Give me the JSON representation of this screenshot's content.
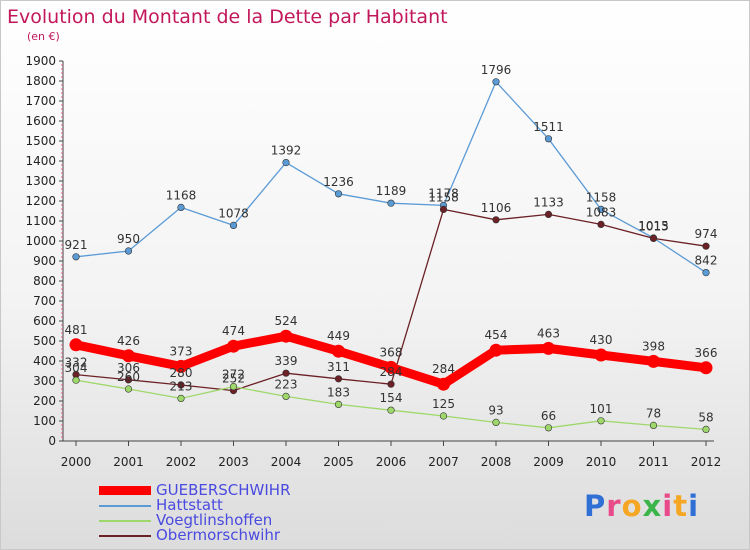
{
  "header": {
    "title": "Evolution du Montant de la Dette par Habitant",
    "subtitle": "(en €)"
  },
  "logo": {
    "text": "Proxiti",
    "colors": [
      "#2f6fd6",
      "#e94b8a",
      "#f5a623",
      "#3bb54a",
      "#e94b8a",
      "#f5a623",
      "#2f6fd6"
    ]
  },
  "chart_data": {
    "type": "line",
    "title": "Evolution du Montant de la Dette par Habitant",
    "subtitle": "(en €)",
    "xlabel": "",
    "ylabel": "",
    "x": [
      "2000",
      "2001",
      "2002",
      "2003",
      "2004",
      "2005",
      "2006",
      "2007",
      "2008",
      "2009",
      "2010",
      "2011",
      "2012"
    ],
    "ylim": [
      0,
      1900
    ],
    "yticks": [
      0,
      100,
      200,
      300,
      400,
      500,
      600,
      700,
      800,
      900,
      1000,
      1100,
      1200,
      1300,
      1400,
      1500,
      1600,
      1700,
      1800,
      1900
    ],
    "grid": false,
    "legend_position": "bottom-left",
    "series": [
      {
        "name": "Hattstatt",
        "color": "#5b9bd5",
        "values": [
          921,
          950,
          1168,
          1078,
          1392,
          1236,
          1189,
          1178,
          1796,
          1511,
          1158,
          1015,
          842
        ],
        "show_labels": true
      },
      {
        "name": "Obermorschwihr",
        "color": "#6b2125",
        "values": [
          332,
          306,
          280,
          252,
          339,
          311,
          284,
          1158,
          1106,
          1133,
          1083,
          1013,
          974
        ],
        "show_labels": true
      },
      {
        "name": "Voegtlinshoffen",
        "color": "#9fd86a",
        "values": [
          304,
          260,
          213,
          272,
          223,
          183,
          154,
          125,
          93,
          66,
          101,
          78,
          58
        ],
        "show_labels": true
      },
      {
        "name": "GUEBERSCHWIHR",
        "color": "#ff0000",
        "values": [
          481,
          426,
          373,
          474,
          524,
          449,
          368,
          284,
          454,
          463,
          430,
          398,
          366
        ],
        "show_labels": true
      }
    ],
    "legend_order": [
      "GUEBERSCHWIHR",
      "Hattstatt",
      "Voegtlinshoffen",
      "Obermorschwihr"
    ]
  }
}
